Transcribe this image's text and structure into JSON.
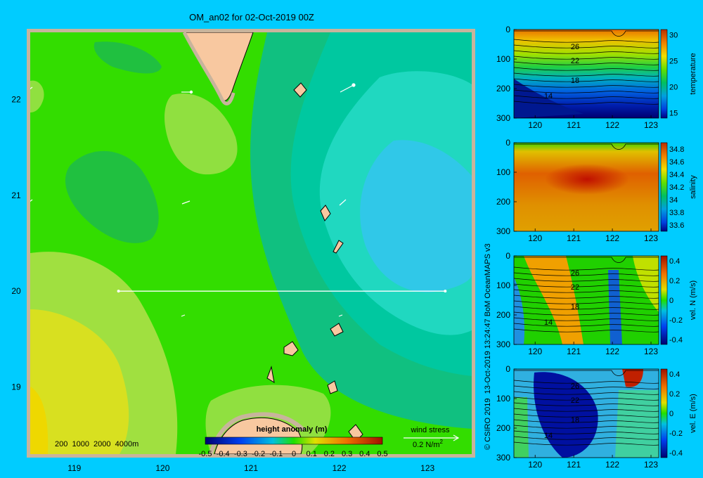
{
  "title": "OM_an02 for 02-Oct-2019 00Z",
  "credit": "© CSIRO 2019  13-Oct-2019 13:24:47 BoM OceanMAPS v3",
  "colors": {
    "background": "#00ccff",
    "land": "#f8c8a0",
    "land_border": "#c8a890",
    "frame": "#c8b49c"
  },
  "map": {
    "x_ticks": [
      "119",
      "120",
      "121",
      "122",
      "123"
    ],
    "y_ticks": [
      "22",
      "21",
      "20",
      "19"
    ],
    "depth_legend": "200  1000  2000  4000m",
    "colorbar_label": "height anomaly (m)",
    "colorbar_ticks": [
      "-0.5",
      "-0.4",
      "-0.3",
      "-0.2",
      "-0.1",
      "0",
      "0.1",
      "0.2",
      "0.3",
      "0.4",
      "0.5"
    ],
    "wind_label": "wind stress",
    "wind_scale_prefix": "0.2 N/m",
    "wind_scale_exp": "2",
    "section_line": {
      "lon": [
        119.5,
        123.2
      ],
      "lat": [
        20.0,
        20.0
      ]
    }
  },
  "chart_data": [
    {
      "type": "heatmap",
      "title": "OM_an02 for 02-Oct-2019 00Z",
      "xlabel": "",
      "ylabel": "",
      "xlim": [
        118.5,
        123.5
      ],
      "ylim": [
        18.3,
        22.7
      ],
      "colorbar": {
        "label": "height anomaly (m)",
        "range": [
          -0.5,
          0.5
        ]
      },
      "field_samples": [
        {
          "lon": 118.7,
          "lat": 18.8,
          "value": 0.2
        },
        {
          "lon": 119.3,
          "lat": 19.5,
          "value": 0.1
        },
        {
          "lon": 120.0,
          "lat": 21.0,
          "value": -0.05
        },
        {
          "lon": 121.0,
          "lat": 20.0,
          "value": 0.0
        },
        {
          "lon": 122.7,
          "lat": 20.8,
          "value": -0.3
        }
      ]
    },
    {
      "type": "heatmap",
      "name": "temperature",
      "x_ticks": [
        "120",
        "121",
        "122",
        "123"
      ],
      "y_ticks": [
        "0",
        "100",
        "200",
        "300"
      ],
      "colorbar": {
        "label": "temperature",
        "ticks": [
          "30",
          "25",
          "20",
          "15"
        ],
        "range": [
          14,
          31
        ]
      },
      "contour_labels": [
        "26",
        "22",
        "18",
        "14"
      ]
    },
    {
      "type": "heatmap",
      "name": "salinity",
      "x_ticks": [
        "120",
        "121",
        "122",
        "123"
      ],
      "y_ticks": [
        "0",
        "100",
        "200",
        "300"
      ],
      "colorbar": {
        "label": "salinity",
        "ticks": [
          "34.8",
          "34.6",
          "34.4",
          "34.2",
          "34",
          "33.8",
          "33.6"
        ],
        "range": [
          33.5,
          34.9
        ]
      },
      "contour_labels": []
    },
    {
      "type": "heatmap",
      "name": "vel. N (m/s)",
      "x_ticks": [
        "120",
        "121",
        "122",
        "123"
      ],
      "y_ticks": [
        "0",
        "100",
        "200",
        "300"
      ],
      "colorbar": {
        "label": "vel. N (m/s)",
        "ticks": [
          "0.4",
          "0.2",
          "0",
          "-0.2",
          "-0.4"
        ],
        "range": [
          -0.45,
          0.45
        ]
      },
      "contour_labels": [
        "26",
        "22",
        "18",
        "14"
      ]
    },
    {
      "type": "heatmap",
      "name": "vel. E (m/s)",
      "x_ticks": [
        "120",
        "121",
        "122",
        "123"
      ],
      "y_ticks": [
        "0",
        "100",
        "200",
        "300"
      ],
      "colorbar": {
        "label": "vel. E (m/s)",
        "ticks": [
          "0.4",
          "0.2",
          "0",
          "-0.2",
          "-0.4"
        ],
        "range": [
          -0.45,
          0.45
        ]
      },
      "contour_labels": [
        "26",
        "22",
        "18",
        "14"
      ]
    }
  ]
}
